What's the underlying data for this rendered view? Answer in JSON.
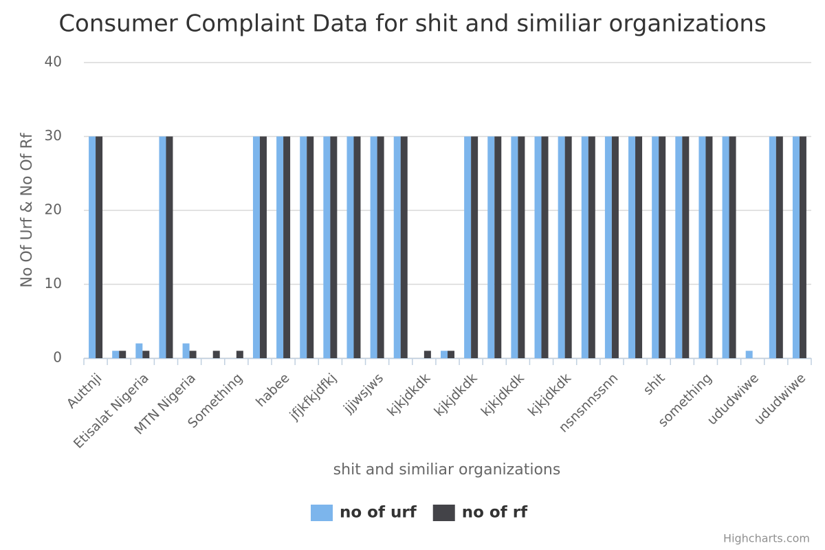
{
  "chart_data": {
    "type": "bar",
    "title": "Consumer Complaint Data for shit and similiar organizations",
    "x_label": "shit and similiar organizations",
    "y_label": "No Of Urf & No Of Rf",
    "categories": [
      "Auttnji",
      null,
      "Etisalat Nigeria",
      null,
      "MTN Nigeria",
      null,
      "Something",
      null,
      "habee",
      null,
      "jfjkfkjdfkj",
      null,
      "jjjwsjws",
      null,
      "kjkjdkdk",
      null,
      "kjkjdkdk",
      null,
      "kjkjdkdk",
      null,
      "kjkjdkdk",
      null,
      "nsnsnnssnn",
      null,
      "shit",
      null,
      "something",
      null,
      "ududwiwe",
      null,
      "ududwiwe"
    ],
    "series": [
      {
        "name": "no of urf",
        "color": "#7cb5ec",
        "values": [
          30,
          1,
          2,
          30,
          2,
          0,
          0,
          30,
          30,
          30,
          30,
          30,
          30,
          30,
          0,
          1,
          30,
          30,
          30,
          30,
          30,
          30,
          30,
          30,
          30,
          30,
          30,
          30,
          1,
          30,
          30
        ]
      },
      {
        "name": "no of rf",
        "color": "#434348",
        "values": [
          30,
          1,
          1,
          30,
          1,
          1,
          1,
          30,
          30,
          30,
          30,
          30,
          30,
          30,
          1,
          1,
          30,
          30,
          30,
          30,
          30,
          30,
          30,
          30,
          30,
          30,
          30,
          30,
          0,
          30,
          30
        ]
      }
    ],
    "ylim": [
      0,
      40
    ],
    "yticks": [
      0,
      10,
      20,
      30,
      40
    ],
    "grid": true,
    "legend": "bottom",
    "credits": "Highcharts.com"
  }
}
